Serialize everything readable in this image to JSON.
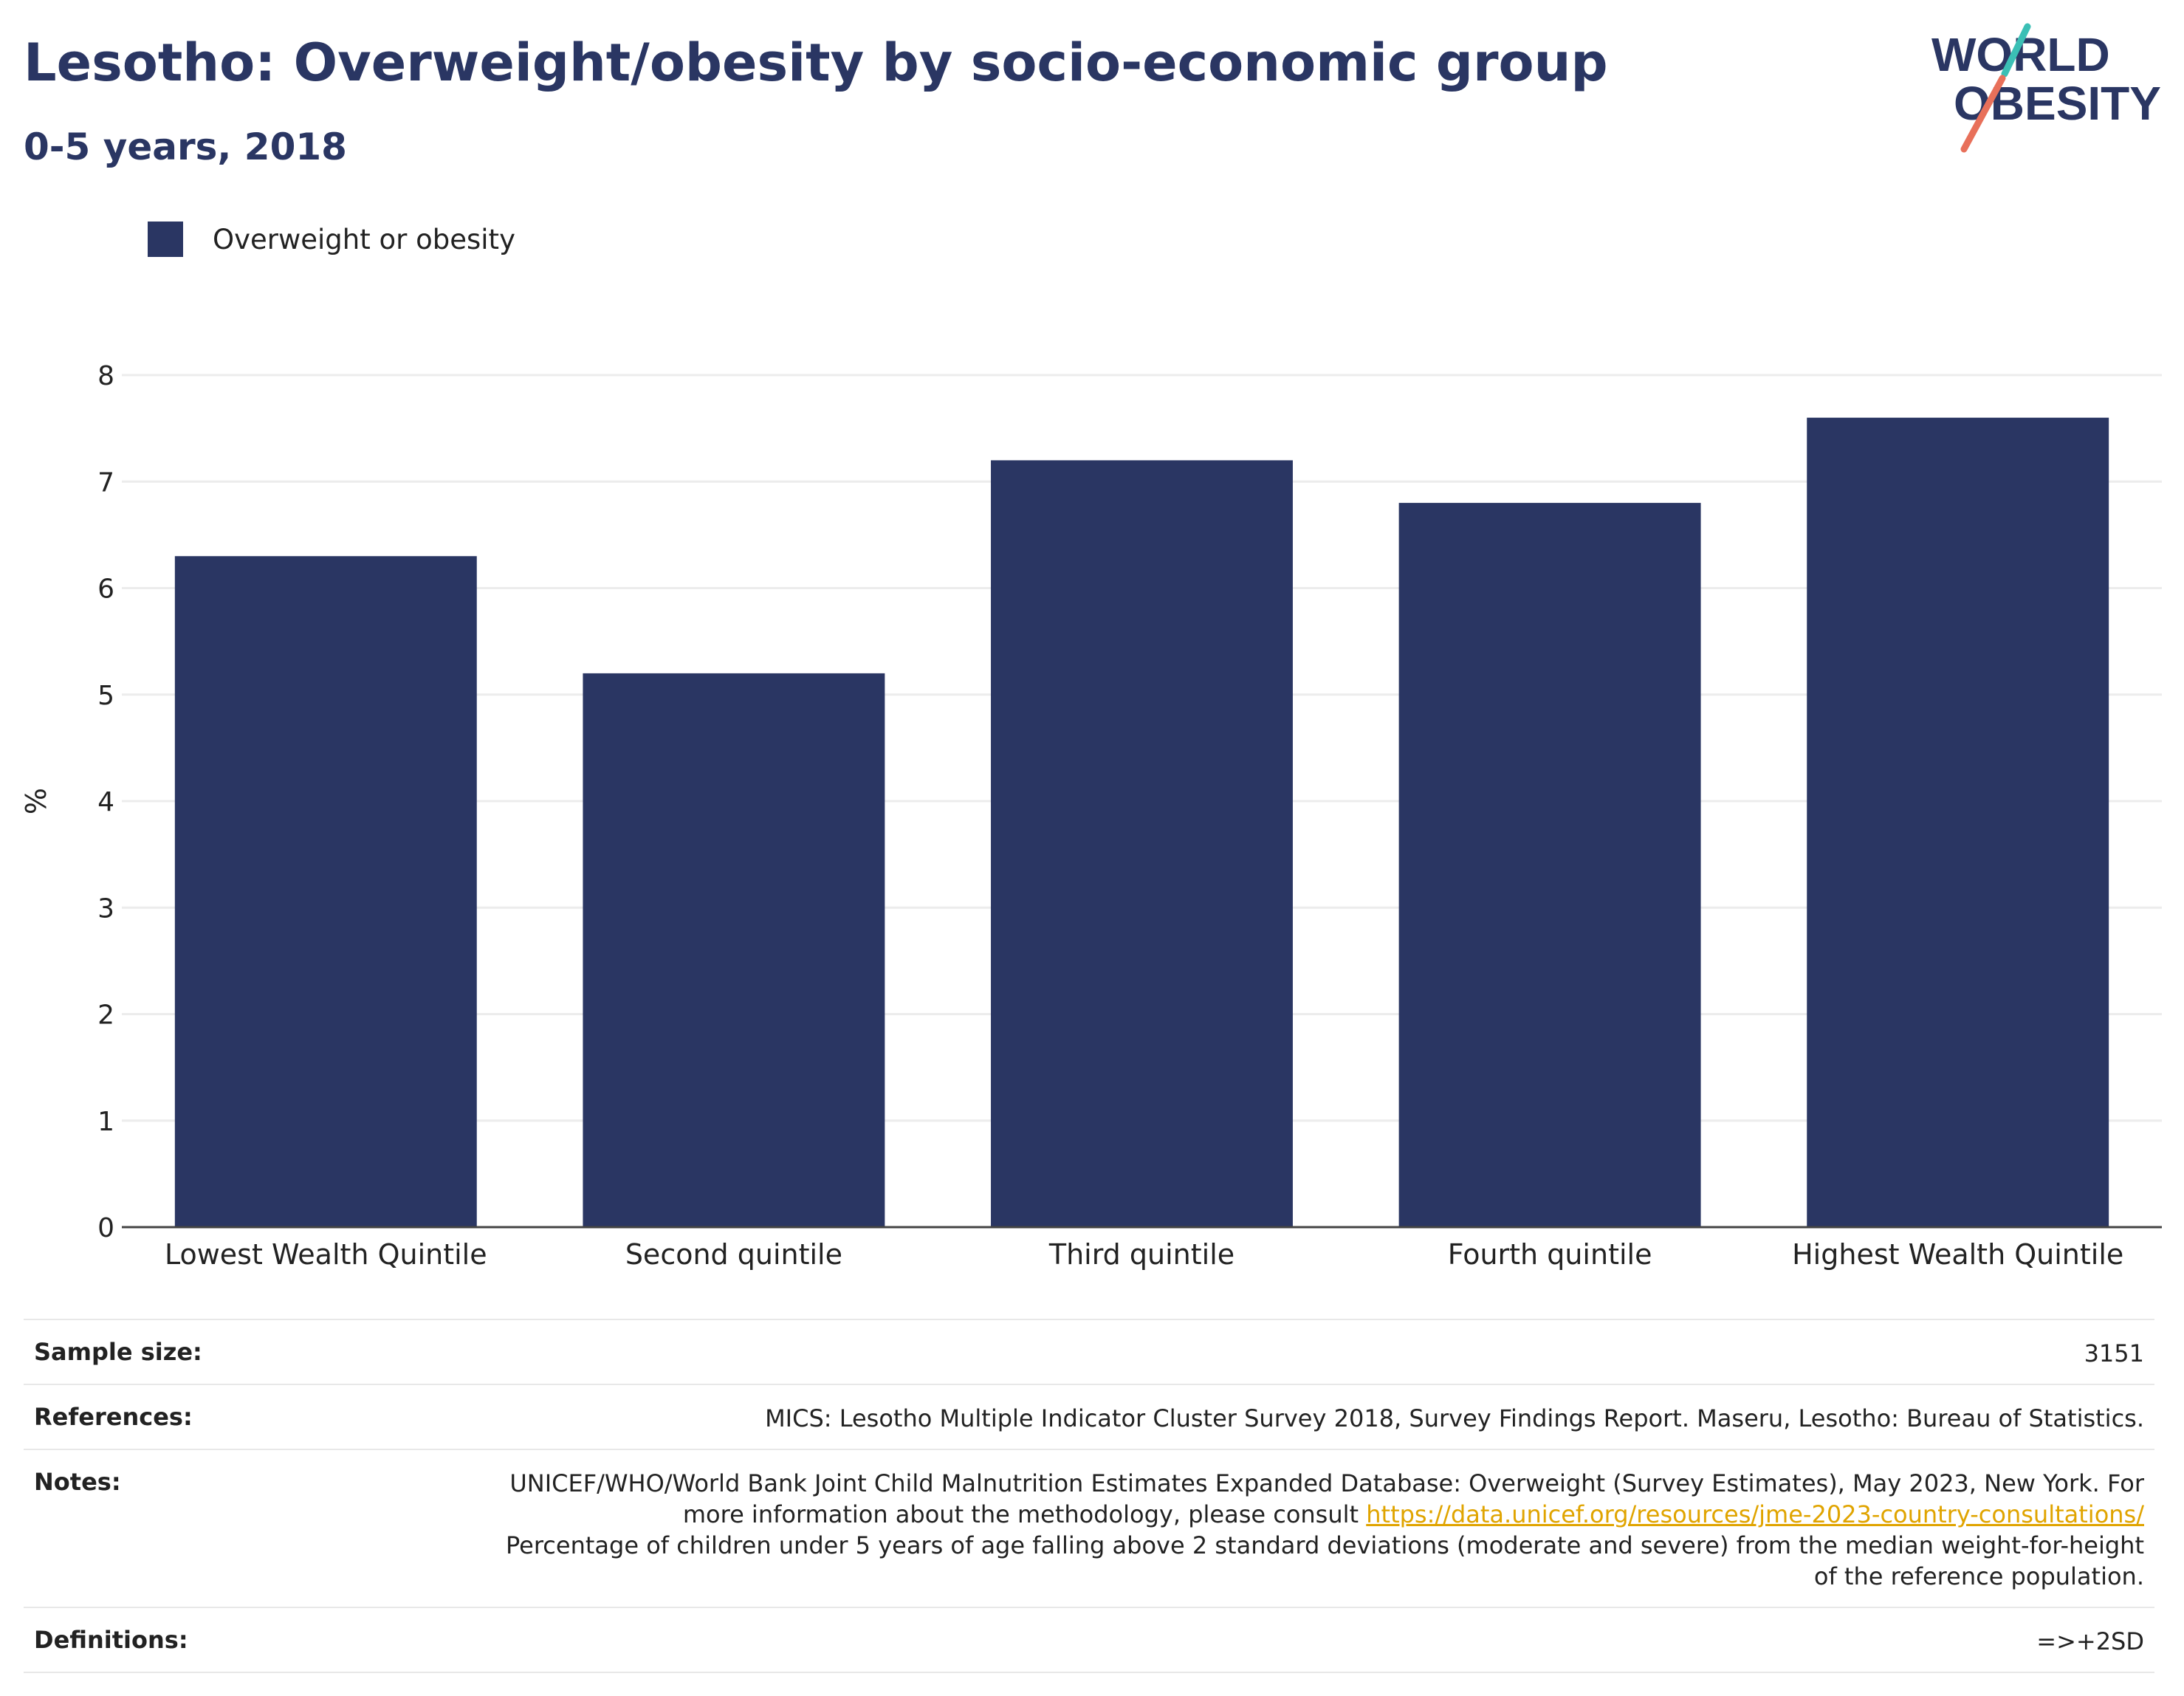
{
  "header": {
    "title": "Lesotho: Overweight/obesity by socio-economic group",
    "subtitle": "0-5 years, 2018"
  },
  "logo": {
    "line1": "WORLD",
    "line2": "OBESITY",
    "colors": {
      "text": "#2a3663",
      "slash_top": "#3bbfb5",
      "slash_bottom": "#e8705a"
    }
  },
  "legend": {
    "items": [
      {
        "label": "Overweight or obesity",
        "color": "#2a3663"
      }
    ]
  },
  "chart_data": {
    "type": "bar",
    "categories": [
      "Lowest Wealth Quintile",
      "Second quintile",
      "Third quintile",
      "Fourth quintile",
      "Highest Wealth Quintile"
    ],
    "series": [
      {
        "name": "Overweight or obesity",
        "values": [
          6.3,
          5.2,
          7.2,
          6.8,
          7.6
        ],
        "color": "#2a3663"
      }
    ],
    "ylabel": "%",
    "ylim": [
      0,
      8
    ],
    "yticks": [
      0,
      1,
      2,
      3,
      4,
      5,
      6,
      7,
      8
    ],
    "grid": true,
    "legend_position": "top-left"
  },
  "info": {
    "sample_size": {
      "label": "Sample size:",
      "value": "3151"
    },
    "references": {
      "label": "References:",
      "value": "MICS: Lesotho Multiple Indicator Cluster Survey 2018, Survey Findings Report. Maseru, Lesotho: Bureau of Statistics."
    },
    "notes": {
      "label": "Notes:",
      "text_before": "UNICEF/WHO/World Bank Joint Child Malnutrition Estimates Expanded Database: Overweight (Survey Estimates), May 2023, New York. For more information about the methodology, please consult ",
      "link": "https://data.unicef.org/resources/jme-2023-country-consultations/",
      "text_after": "Percentage of children under 5 years of age falling above 2 standard deviations (moderate and severe) from the median weight-for-height of the reference population."
    },
    "definitions": {
      "label": "Definitions:",
      "value": "=>+2SD"
    }
  }
}
